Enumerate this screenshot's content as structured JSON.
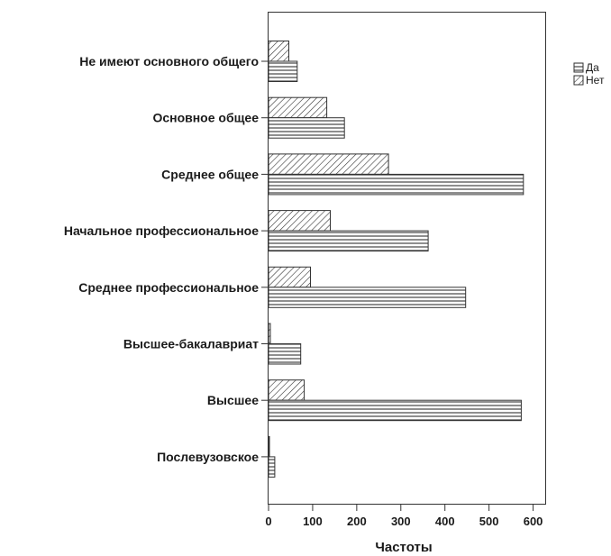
{
  "chart_data": {
    "type": "bar",
    "orientation": "horizontal",
    "categories": [
      "Не имеют основного общего",
      "Основное общее",
      "Среднее общее",
      "Начальное профессиональное",
      "Среднее профессиональное",
      "Высшее-бакалавриат",
      "Высшее",
      "Послевузовское"
    ],
    "series": [
      {
        "name": "Нет",
        "pattern": "diagonal-hatch",
        "values": [
          46,
          132,
          272,
          140,
          95,
          4,
          81,
          2
        ]
      },
      {
        "name": "Да",
        "pattern": "horizontal-lines",
        "values": [
          65,
          172,
          578,
          362,
          447,
          73,
          573,
          14
        ]
      }
    ],
    "xlabel": "Частоты",
    "ylabel": "",
    "xlim": [
      0,
      630
    ],
    "xticks": [
      0,
      100,
      200,
      300,
      400,
      500,
      600
    ],
    "legend": {
      "placement": "top-right",
      "order": [
        "Да",
        "Нет"
      ]
    },
    "grid": false,
    "colors": {
      "bar_fill": "#ffffff",
      "stroke": "#333333",
      "axis": "#333333"
    }
  }
}
